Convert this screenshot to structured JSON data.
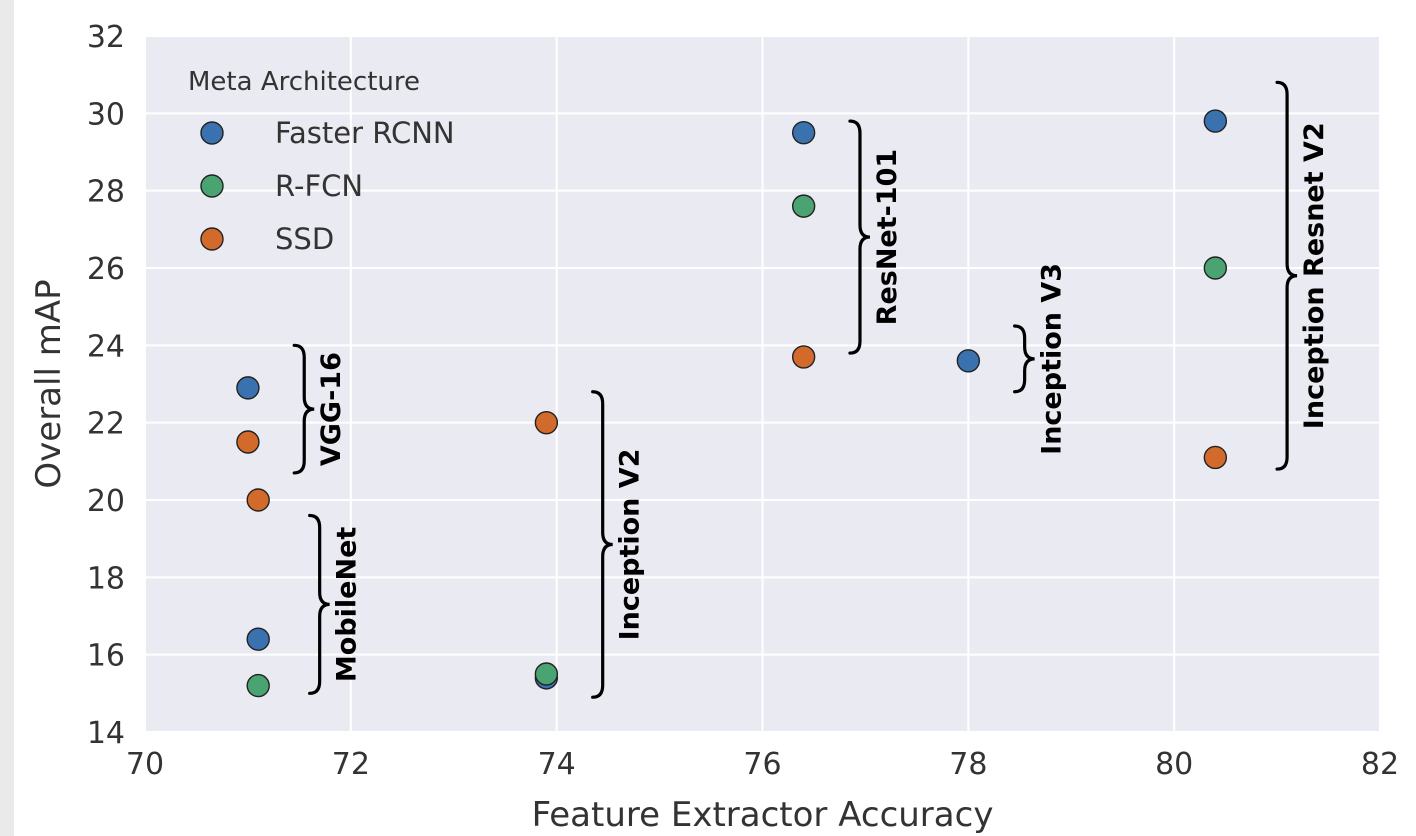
{
  "chart_data": {
    "type": "scatter",
    "xlabel": "Feature Extractor Accuracy",
    "ylabel": "Overall mAP",
    "xlim": [
      70,
      82
    ],
    "ylim": [
      14,
      32
    ],
    "x_ticks": [
      "70",
      "72",
      "74",
      "76",
      "78",
      "80",
      "82"
    ],
    "y_ticks": [
      "14",
      "16",
      "18",
      "20",
      "22",
      "24",
      "26",
      "28",
      "30",
      "32"
    ],
    "grid": true,
    "legend": {
      "title": "Meta Architecture",
      "position": "top-left",
      "entries": [
        "Faster RCNN",
        "R-FCN",
        "SSD"
      ]
    },
    "series": [
      {
        "name": "Faster RCNN",
        "color": "#3a72b0",
        "points": [
          {
            "x": 71.0,
            "y": 22.9
          },
          {
            "x": 71.1,
            "y": 16.4
          },
          {
            "x": 73.9,
            "y": 15.4
          },
          {
            "x": 76.4,
            "y": 29.5
          },
          {
            "x": 78.0,
            "y": 23.6
          },
          {
            "x": 80.4,
            "y": 29.8
          }
        ]
      },
      {
        "name": "R-FCN",
        "color": "#4aa472",
        "points": [
          {
            "x": 71.1,
            "y": 15.2
          },
          {
            "x": 73.9,
            "y": 15.5
          },
          {
            "x": 76.4,
            "y": 27.6
          },
          {
            "x": 80.4,
            "y": 26.0
          }
        ]
      },
      {
        "name": "SSD",
        "color": "#d26a2b",
        "points": [
          {
            "x": 71.0,
            "y": 21.5
          },
          {
            "x": 71.1,
            "y": 20.0
          },
          {
            "x": 73.9,
            "y": 22.0
          },
          {
            "x": 76.4,
            "y": 23.7
          },
          {
            "x": 80.4,
            "y": 21.1
          }
        ]
      }
    ],
    "annotations": [
      {
        "label": "VGG-16",
        "x": 71.45,
        "y_range": [
          20.7,
          24.0
        ]
      },
      {
        "label": "MobileNet",
        "x": 71.6,
        "y_range": [
          15.0,
          19.6
        ]
      },
      {
        "label": "Inception V2",
        "x": 74.35,
        "y_range": [
          14.9,
          22.8
        ]
      },
      {
        "label": "ResNet-101",
        "x": 76.85,
        "y_range": [
          23.8,
          29.8
        ]
      },
      {
        "label": "Inception V3",
        "x": 78.45,
        "y_range": [
          22.8,
          24.5
        ]
      },
      {
        "label": "Inception Resnet V2",
        "x": 81.0,
        "y_range": [
          20.8,
          30.8
        ]
      }
    ]
  }
}
